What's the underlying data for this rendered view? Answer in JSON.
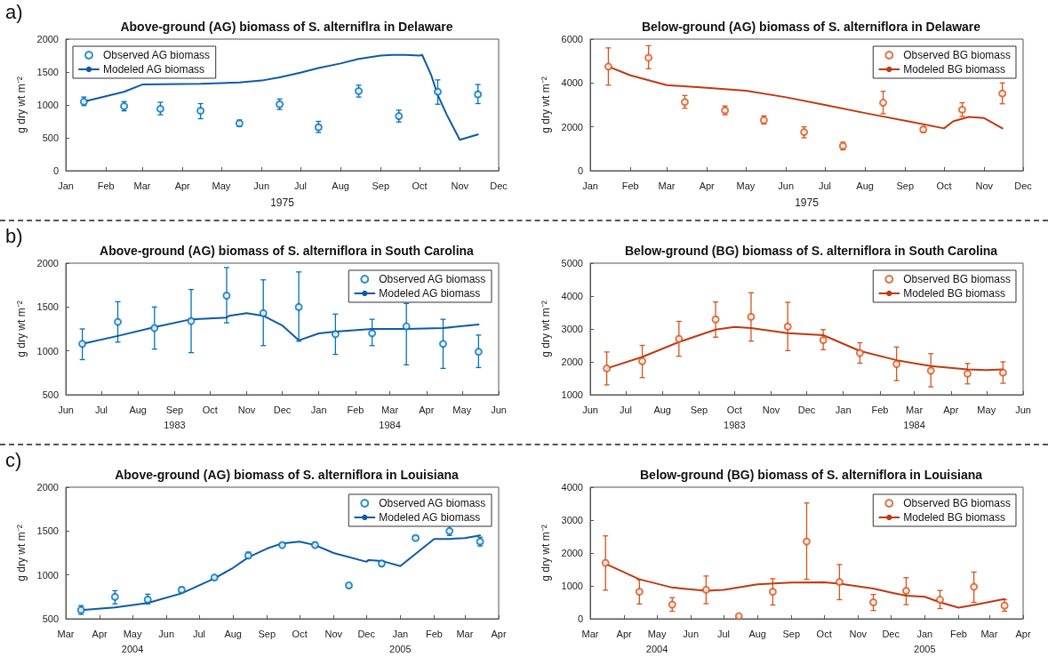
{
  "chart_data": [
    {
      "type": "line",
      "title": "Above-ground (AG) biomass of S. alterniflra in Delaware",
      "xlabel": "1975",
      "ylabel": "g dry wt m⁻²",
      "annotations": [
        "a)"
      ],
      "legend": "top left",
      "line_style": "solid",
      "xlim": [
        "1975-01-01",
        "1975-12-01"
      ],
      "xticks": [
        {
          "value": "1975-01-01",
          "label": "Jan"
        },
        {
          "value": "1975-02-01",
          "label": "Feb"
        },
        {
          "value": "1975-03-01",
          "label": "Mar"
        },
        {
          "value": "1975-04-01",
          "label": "Apr"
        },
        {
          "value": "1975-05-01",
          "label": "May"
        },
        {
          "value": "1975-06-01",
          "label": "Jun"
        },
        {
          "value": "1975-07-01",
          "label": "Jul"
        },
        {
          "value": "1975-08-01",
          "label": "Aug"
        },
        {
          "value": "1975-09-01",
          "label": "Sep"
        },
        {
          "value": "1975-10-01",
          "label": "Oct"
        },
        {
          "value": "1975-11-01",
          "label": "Nov"
        },
        {
          "value": "1975-12-01",
          "label": "Dec"
        }
      ],
      "ylim": [
        0,
        2000
      ],
      "yticks": [
        0,
        500,
        1000,
        1500,
        2000
      ],
      "series": [
        {
          "name": "Observed AG biomass",
          "type": "scatter",
          "marker": "circle",
          "color": "#0072bd",
          "x": [
            "1975-01-15",
            "1975-02-15",
            "1975-03-15",
            "1975-04-15",
            "1975-05-15",
            "1975-06-15",
            "1975-07-15",
            "1975-08-15",
            "1975-09-15",
            "1975-10-15",
            "1975-11-15"
          ],
          "values": [
            1050,
            980,
            940,
            910,
            720,
            1010,
            660,
            1210,
            830,
            1200,
            1160
          ],
          "errors": [
            [
              990,
              1120
            ],
            [
              910,
              1050
            ],
            [
              850,
              1040
            ],
            [
              790,
              1020
            ],
            [
              670,
              770
            ],
            [
              930,
              1090
            ],
            [
              580,
              750
            ],
            [
              1120,
              1300
            ],
            [
              740,
              920
            ],
            [
              1010,
              1380
            ],
            [
              1020,
              1310
            ]
          ]
        },
        {
          "name": "Modeled AG biomass",
          "marker": "none",
          "color": "#0d5aa7",
          "x": [
            "1975-01-15",
            "1975-02-15",
            "1975-03-01",
            "1975-04-15",
            "1975-05-15",
            "1975-06-01",
            "1975-06-15",
            "1975-07-01",
            "1975-07-15",
            "1975-08-01",
            "1975-08-15",
            "1975-09-01",
            "1975-09-10",
            "1975-09-20",
            "1975-10-01",
            "1975-10-03",
            "1975-10-10",
            "1975-10-15",
            "1975-10-22",
            "1975-11-01",
            "1975-11-15"
          ],
          "values": [
            1050,
            1200,
            1310,
            1320,
            1340,
            1370,
            1420,
            1490,
            1560,
            1630,
            1700,
            1750,
            1760,
            1760,
            1750,
            1760,
            1450,
            1150,
            850,
            470,
            550
          ]
        }
      ]
    },
    {
      "type": "line",
      "title": "Below-ground (AG) biomass of S. alterniflora in Delaware",
      "xlabel": "1975",
      "ylabel": "g dry wt m⁻²",
      "legend": "top right",
      "line_style": "solid",
      "xlim": [
        "1975-01-01",
        "1975-12-01"
      ],
      "xticks": [
        {
          "value": "1975-01-01",
          "label": "Jan"
        },
        {
          "value": "1975-02-01",
          "label": "Feb"
        },
        {
          "value": "1975-03-01",
          "label": "Mar"
        },
        {
          "value": "1975-04-01",
          "label": "Apr"
        },
        {
          "value": "1975-05-01",
          "label": "May"
        },
        {
          "value": "1975-06-01",
          "label": "Jun"
        },
        {
          "value": "1975-07-01",
          "label": "Jul"
        },
        {
          "value": "1975-08-01",
          "label": "Aug"
        },
        {
          "value": "1975-09-01",
          "label": "Sep"
        },
        {
          "value": "1975-10-01",
          "label": "Oct"
        },
        {
          "value": "1975-11-01",
          "label": "Nov"
        },
        {
          "value": "1975-12-01",
          "label": "Dec"
        }
      ],
      "ylim": [
        0,
        6000
      ],
      "yticks": [
        0,
        2000,
        4000,
        6000
      ],
      "series": [
        {
          "name": "Observed BG biomass",
          "type": "scatter",
          "marker": "circle",
          "color": "#d95319",
          "x": [
            "1975-01-15",
            "1975-02-15",
            "1975-03-15",
            "1975-04-15",
            "1975-05-15",
            "1975-06-15",
            "1975-07-15",
            "1975-08-15",
            "1975-09-15",
            "1975-10-15",
            "1975-11-15"
          ],
          "values": [
            4750,
            5150,
            3130,
            2750,
            2300,
            1760,
            1130,
            3100,
            1880,
            2780,
            3520
          ],
          "errors": [
            [
              3900,
              5600
            ],
            [
              4650,
              5700
            ],
            [
              2850,
              3430
            ],
            [
              2550,
              2950
            ],
            [
              2130,
              2500
            ],
            [
              1500,
              2000
            ],
            [
              950,
              1300
            ],
            [
              2600,
              3620
            ],
            [
              1750,
              2000
            ],
            [
              2480,
              3100
            ],
            [
              3050,
              4000
            ]
          ]
        },
        {
          "name": "Modeled BG biomass",
          "marker": "none",
          "color": "#c1380f",
          "x": [
            "1975-01-15",
            "1975-02-01",
            "1975-03-01",
            "1975-04-01",
            "1975-05-01",
            "1975-06-01",
            "1975-07-01",
            "1975-08-01",
            "1975-09-01",
            "1975-10-01",
            "1975-10-08",
            "1975-10-20",
            "1975-11-01",
            "1975-11-15"
          ],
          "values": [
            4750,
            4350,
            3900,
            3780,
            3650,
            3350,
            3000,
            2630,
            2280,
            1930,
            2250,
            2450,
            2400,
            1930
          ]
        }
      ]
    },
    {
      "type": "line",
      "title": "Above-ground (AG) biomass of S. alterniflora in South Carolina",
      "ylabel": "g dry wt m⁻²",
      "annotations": [
        "b)"
      ],
      "legend": "top right",
      "line_style": "solid",
      "xlim": [
        "1983-06-01",
        "1984-06-01"
      ],
      "xticks": [
        {
          "value": "1983-06-01",
          "label": "Jun"
        },
        {
          "value": "1983-07-01",
          "label": "Jul"
        },
        {
          "value": "1983-08-01",
          "label": "Aug"
        },
        {
          "value": "1983-09-01",
          "label": "Sep\n1983"
        },
        {
          "value": "1983-10-01",
          "label": "Oct"
        },
        {
          "value": "1983-11-01",
          "label": "Nov"
        },
        {
          "value": "1983-12-01",
          "label": "Dec"
        },
        {
          "value": "1984-01-01",
          "label": "Jan"
        },
        {
          "value": "1984-02-01",
          "label": "Feb"
        },
        {
          "value": "1984-03-01",
          "label": "Mar\n1984"
        },
        {
          "value": "1984-04-01",
          "label": "Apr"
        },
        {
          "value": "1984-05-01",
          "label": "May"
        },
        {
          "value": "1984-06-01",
          "label": "Jun"
        }
      ],
      "ylim": [
        500,
        2000
      ],
      "yticks": [
        500,
        1000,
        1500,
        2000
      ],
      "series": [
        {
          "name": "Observed AG biomass",
          "type": "scatter",
          "marker": "circle",
          "color": "#0072bd",
          "x": [
            "1983-06-15",
            "1983-07-15",
            "1983-08-15",
            "1983-09-15",
            "1983-10-15",
            "1983-11-15",
            "1983-12-15",
            "1984-01-15",
            "1984-02-15",
            "1984-03-15",
            "1984-04-15",
            "1984-05-15"
          ],
          "values": [
            1080,
            1330,
            1260,
            1340,
            1630,
            1430,
            1500,
            1190,
            1200,
            1280,
            1080,
            990
          ],
          "errors": [
            [
              900,
              1250
            ],
            [
              1100,
              1560
            ],
            [
              1020,
              1500
            ],
            [
              980,
              1700
            ],
            [
              1320,
              1950
            ],
            [
              1060,
              1810
            ],
            [
              1110,
              1900
            ],
            [
              960,
              1420
            ],
            [
              1060,
              1360
            ],
            [
              840,
              1540
            ],
            [
              800,
              1360
            ],
            [
              810,
              1180
            ]
          ]
        },
        {
          "name": "Modeled AG biomass",
          "marker": "none",
          "color": "#0d5aa7",
          "x": [
            "1983-06-15",
            "1983-07-15",
            "1983-08-15",
            "1983-09-15",
            "1983-10-15",
            "1983-10-17",
            "1983-11-01",
            "1983-11-15",
            "1983-12-01",
            "1983-12-15",
            "1984-01-01",
            "1984-01-15",
            "1984-02-15",
            "1984-03-15",
            "1984-04-15",
            "1984-05-15"
          ],
          "values": [
            1080,
            1170,
            1270,
            1360,
            1380,
            1400,
            1430,
            1400,
            1290,
            1120,
            1200,
            1220,
            1250,
            1250,
            1260,
            1300
          ]
        }
      ]
    },
    {
      "type": "line",
      "title": "Below-ground (BG) biomass of S. alterniflora in South Carolina",
      "ylabel": "g dry wt m⁻²",
      "legend": "top right",
      "line_style": "solid",
      "xlim": [
        "1983-06-01",
        "1984-06-01"
      ],
      "xticks": [
        {
          "value": "1983-06-01",
          "label": "Jun"
        },
        {
          "value": "1983-07-01",
          "label": "Jul"
        },
        {
          "value": "1983-08-01",
          "label": "Aug"
        },
        {
          "value": "1983-09-01",
          "label": "Sep"
        },
        {
          "value": "1983-10-01",
          "label": "Oct\n1983"
        },
        {
          "value": "1983-11-01",
          "label": "Nov"
        },
        {
          "value": "1983-12-01",
          "label": "Dec"
        },
        {
          "value": "1984-01-01",
          "label": "Jan"
        },
        {
          "value": "1984-02-01",
          "label": "Feb"
        },
        {
          "value": "1984-03-01",
          "label": "Mar\n1984"
        },
        {
          "value": "1984-04-01",
          "label": "Apr"
        },
        {
          "value": "1984-05-01",
          "label": "May"
        },
        {
          "value": "1984-06-01",
          "label": "Jun"
        }
      ],
      "ylim": [
        1000,
        5000
      ],
      "yticks": [
        1000,
        2000,
        3000,
        4000,
        5000
      ],
      "series": [
        {
          "name": "Observed BG biomass",
          "type": "scatter",
          "marker": "circle",
          "color": "#d95319",
          "x": [
            "1983-06-15",
            "1983-07-15",
            "1983-08-15",
            "1983-09-15",
            "1983-10-15",
            "1983-11-15",
            "1983-12-15",
            "1984-01-15",
            "1984-02-15",
            "1984-03-15",
            "1984-04-15",
            "1984-05-15"
          ],
          "values": [
            1800,
            2020,
            2700,
            3290,
            3370,
            3070,
            2660,
            2270,
            1930,
            1730,
            1640,
            1670
          ],
          "errors": [
            [
              1300,
              2300
            ],
            [
              1520,
              2500
            ],
            [
              2170,
              3230
            ],
            [
              2750,
              3820
            ],
            [
              2630,
              4100
            ],
            [
              2340,
              3810
            ],
            [
              2370,
              2980
            ],
            [
              1960,
              2580
            ],
            [
              1430,
              2450
            ],
            [
              1240,
              2250
            ],
            [
              1330,
              1950
            ],
            [
              1350,
              2000
            ]
          ]
        },
        {
          "name": "Modeled BG biomass",
          "marker": "none",
          "color": "#c1380f",
          "x": [
            "1983-06-15",
            "1983-07-15",
            "1983-08-15",
            "1983-09-15",
            "1983-10-01",
            "1983-10-15",
            "1983-11-15",
            "1983-12-15",
            "1984-01-15",
            "1984-02-15",
            "1984-03-15",
            "1984-04-15",
            "1984-05-01",
            "1984-05-15"
          ],
          "values": [
            1800,
            2150,
            2600,
            2980,
            3060,
            3030,
            2870,
            2810,
            2330,
            2050,
            1870,
            1770,
            1750,
            1770
          ]
        }
      ]
    },
    {
      "type": "line",
      "title": "Above-ground (AG) biomass of S. alterniflora in Louisiana",
      "ylabel": "g dry wt m⁻²",
      "annotations": [
        "c)"
      ],
      "legend": "top right",
      "line_style": "solid",
      "xlim": [
        "2004-03-01",
        "2005-04-01"
      ],
      "xticks": [
        {
          "value": "2004-03-01",
          "label": "Mar"
        },
        {
          "value": "2004-04-01",
          "label": "Apr"
        },
        {
          "value": "2004-05-01",
          "label": "May\n2004"
        },
        {
          "value": "2004-06-01",
          "label": "Jun"
        },
        {
          "value": "2004-07-01",
          "label": "Jul"
        },
        {
          "value": "2004-08-01",
          "label": "Aug"
        },
        {
          "value": "2004-09-01",
          "label": "Sep"
        },
        {
          "value": "2004-10-01",
          "label": "Oct"
        },
        {
          "value": "2004-11-01",
          "label": "Nov"
        },
        {
          "value": "2004-12-01",
          "label": "Dec"
        },
        {
          "value": "2005-01-01",
          "label": "Jan\n2005"
        },
        {
          "value": "2005-02-01",
          "label": "Feb"
        },
        {
          "value": "2005-03-01",
          "label": "Mar"
        },
        {
          "value": "2005-04-01",
          "label": "Apr"
        }
      ],
      "ylim": [
        500,
        2000
      ],
      "yticks": [
        500,
        1000,
        1500,
        2000
      ],
      "series": [
        {
          "name": "Observed AG biomass",
          "type": "scatter",
          "marker": "circle",
          "color": "#0072bd",
          "x": [
            "2004-03-15",
            "2004-04-15",
            "2004-05-15",
            "2004-06-15",
            "2004-07-15",
            "2004-08-15",
            "2004-09-15",
            "2004-10-15",
            "2004-11-15",
            "2004-12-15",
            "2005-01-15",
            "2005-02-15",
            "2005-03-15"
          ],
          "values": [
            600,
            750,
            720,
            830,
            970,
            1220,
            1340,
            1340,
            880,
            1130,
            1420,
            1500,
            1380
          ],
          "errors": [
            [
              550,
              650
            ],
            [
              670,
              820
            ],
            [
              670,
              780
            ],
            [
              800,
              860
            ],
            [
              950,
              990
            ],
            [
              1190,
              1260
            ],
            [
              1330,
              1360
            ],
            [
              1320,
              1370
            ],
            [
              860,
              890
            ],
            [
              1100,
              1160
            ],
            [
              1400,
              1440
            ],
            [
              1450,
              1560
            ],
            [
              1330,
              1430
            ]
          ]
        },
        {
          "name": "Modeled AG biomass",
          "marker": "none",
          "color": "#0d5aa7",
          "x": [
            "2004-03-15",
            "2004-04-15",
            "2004-05-15",
            "2004-06-15",
            "2004-07-15",
            "2004-08-01",
            "2004-08-15",
            "2004-09-01",
            "2004-09-15",
            "2004-10-01",
            "2004-10-15",
            "2004-11-01",
            "2004-12-01",
            "2004-12-03",
            "2004-12-15",
            "2005-01-01",
            "2005-02-01",
            "2005-02-15",
            "2005-03-01",
            "2005-03-15"
          ],
          "values": [
            600,
            630,
            680,
            790,
            960,
            1080,
            1200,
            1300,
            1360,
            1380,
            1340,
            1250,
            1150,
            1170,
            1160,
            1100,
            1410,
            1410,
            1420,
            1450
          ]
        }
      ]
    },
    {
      "type": "line",
      "title": "Below-ground (BG) biomass of S. alterniflora in Louisiana",
      "ylabel": "g dry wt m⁻²",
      "legend": "top right",
      "line_style": "solid",
      "xlim": [
        "2004-03-01",
        "2005-04-01"
      ],
      "xticks": [
        {
          "value": "2004-03-01",
          "label": "Mar"
        },
        {
          "value": "2004-04-01",
          "label": "Apr"
        },
        {
          "value": "2004-05-01",
          "label": "May\n2004"
        },
        {
          "value": "2004-06-01",
          "label": "Jun"
        },
        {
          "value": "2004-07-01",
          "label": "Jul"
        },
        {
          "value": "2004-08-01",
          "label": "Aug"
        },
        {
          "value": "2004-09-01",
          "label": "Sep"
        },
        {
          "value": "2004-10-01",
          "label": "Oct"
        },
        {
          "value": "2004-11-01",
          "label": "Nov"
        },
        {
          "value": "2004-12-01",
          "label": "Dec"
        },
        {
          "value": "2005-01-01",
          "label": "Jan\n2005"
        },
        {
          "value": "2005-02-01",
          "label": "Feb"
        },
        {
          "value": "2005-03-01",
          "label": "Mar"
        },
        {
          "value": "2005-04-01",
          "label": "Apr"
        }
      ],
      "ylim": [
        0,
        4000
      ],
      "yticks": [
        0,
        1000,
        2000,
        3000,
        4000
      ],
      "series": [
        {
          "name": "Observed BG biomass",
          "type": "scatter",
          "marker": "circle",
          "color": "#d95319",
          "x": [
            "2004-03-15",
            "2004-04-15",
            "2004-05-15",
            "2004-06-15",
            "2004-07-15",
            "2004-08-15",
            "2004-09-15",
            "2004-10-15",
            "2004-11-15",
            "2004-12-15",
            "2005-01-15",
            "2005-02-15",
            "2005-03-15"
          ],
          "values": [
            1700,
            820,
            430,
            880,
            80,
            820,
            2350,
            1120,
            500,
            850,
            580,
            970,
            400
          ],
          "errors": [
            [
              870,
              2520
            ],
            [
              450,
              1180
            ],
            [
              230,
              640
            ],
            [
              460,
              1300
            ],
            [
              50,
              110
            ],
            [
              420,
              1220
            ],
            [
              1200,
              3520
            ],
            [
              580,
              1650
            ],
            [
              250,
              740
            ],
            [
              430,
              1250
            ],
            [
              310,
              860
            ],
            [
              500,
              1420
            ],
            [
              230,
              580
            ]
          ]
        },
        {
          "name": "Modeled BG biomass",
          "marker": "none",
          "color": "#c1380f",
          "x": [
            "2004-03-15",
            "2004-04-15",
            "2004-05-15",
            "2004-06-15",
            "2004-07-01",
            "2004-08-01",
            "2004-09-01",
            "2004-10-01",
            "2004-10-15",
            "2004-11-15",
            "2004-12-01",
            "2004-12-15",
            "2005-01-01",
            "2005-01-15",
            "2005-02-01",
            "2005-02-15",
            "2005-03-15"
          ],
          "values": [
            1670,
            1200,
            950,
            850,
            880,
            1050,
            1100,
            1110,
            1070,
            920,
            800,
            700,
            670,
            500,
            340,
            420,
            600
          ]
        }
      ]
    }
  ]
}
